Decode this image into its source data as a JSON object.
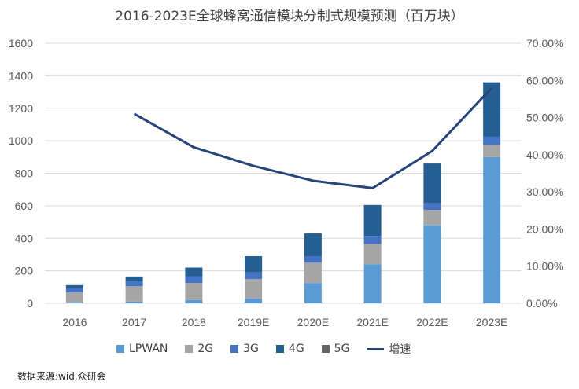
{
  "chart_data": {
    "type": "bar",
    "title": "2016-2023E全球蜂窝通信模块分制式规模预测（百万块）",
    "categories": [
      "2016",
      "2017",
      "2018",
      "2019E",
      "2020E",
      "2021E",
      "2022E",
      "2023E"
    ],
    "stacked": true,
    "series": [
      {
        "name": "LPWAN",
        "color": "#5B9BD5",
        "values": [
          5,
          10,
          20,
          30,
          125,
          240,
          480,
          900
        ]
      },
      {
        "name": "2G",
        "color": "#A5A5A5",
        "values": [
          62,
          95,
          105,
          120,
          125,
          125,
          95,
          75
        ]
      },
      {
        "name": "3G",
        "color": "#4472C4",
        "values": [
          25,
          30,
          40,
          40,
          40,
          50,
          40,
          50
        ]
      },
      {
        "name": "4G",
        "color": "#255E91",
        "values": [
          20,
          30,
          55,
          100,
          140,
          190,
          245,
          335
        ]
      },
      {
        "name": "5G",
        "color": "#636363",
        "values": [
          0,
          0,
          0,
          0,
          0,
          0,
          0,
          0
        ]
      }
    ],
    "line_series": {
      "name": "增速",
      "color": "#264478",
      "axis": "right",
      "values": [
        null,
        0.51,
        0.42,
        0.37,
        0.33,
        0.31,
        0.41,
        0.58
      ]
    },
    "ylim": [
      0,
      1600
    ],
    "yticks": [
      "0",
      "200",
      "400",
      "600",
      "800",
      "1000",
      "1200",
      "1400",
      "1600"
    ],
    "y2lim": [
      0,
      0.7
    ],
    "y2ticks": [
      "0.00%",
      "10.00%",
      "20.00%",
      "30.00%",
      "40.00%",
      "50.00%",
      "60.00%",
      "70.00%"
    ],
    "grid": true,
    "legend_position": "bottom"
  },
  "source_note": "数据来源:wid,众研会"
}
